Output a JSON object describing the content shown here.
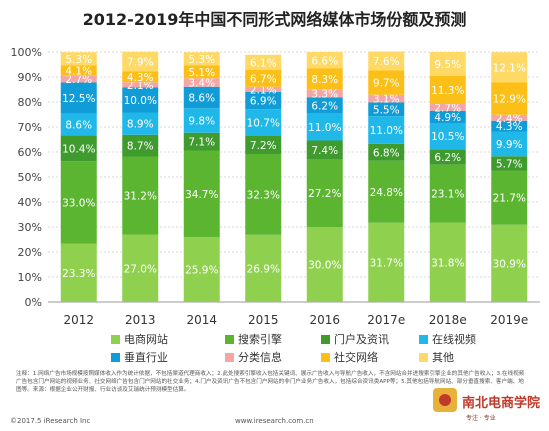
{
  "title": "2012-2019年中国不同形式网络媒体市场份额及预测",
  "chart_data": {
    "type": "bar",
    "stacked": true,
    "percent": true,
    "categories": [
      "2012",
      "2013",
      "2014",
      "2015",
      "2016",
      "2017e",
      "2018e",
      "2019e"
    ],
    "ylim": [
      0,
      100
    ],
    "yticks": [
      "0%",
      "10%",
      "20%",
      "30%",
      "40%",
      "50%",
      "60%",
      "70%",
      "80%",
      "90%",
      "100%"
    ],
    "grid": true,
    "legend_position": "bottom",
    "series": [
      {
        "name": "电商网站",
        "color": "#8fd14f",
        "values": [
          23.3,
          27.0,
          25.9,
          26.9,
          30.0,
          31.7,
          31.8,
          30.9
        ]
      },
      {
        "name": "搜索引擎",
        "color": "#5cb531",
        "values": [
          33.0,
          31.2,
          34.7,
          32.3,
          27.2,
          24.8,
          23.1,
          21.7
        ]
      },
      {
        "name": "门户及资讯",
        "color": "#3f9b2e",
        "values": [
          10.4,
          8.7,
          7.1,
          7.2,
          7.4,
          6.8,
          6.2,
          5.7
        ]
      },
      {
        "name": "在线视频",
        "color": "#1fb8e8",
        "values": [
          8.6,
          8.9,
          9.8,
          10.7,
          11.0,
          11.0,
          10.5,
          9.9
        ]
      },
      {
        "name": "垂直行业",
        "color": "#109cd6",
        "values": [
          12.5,
          10.0,
          8.6,
          6.9,
          6.2,
          5.5,
          4.9,
          4.3
        ]
      },
      {
        "name": "分类信息",
        "color": "#f4a6a6",
        "values": [
          2.7,
          2.1,
          3.4,
          2.1,
          3.3,
          3.1,
          2.7,
          2.4
        ]
      },
      {
        "name": "社交网络",
        "color": "#fbbf18",
        "values": [
          4.1,
          4.3,
          5.1,
          6.7,
          8.3,
          9.7,
          11.3,
          12.9
        ]
      },
      {
        "name": "其他",
        "color": "#ffd966",
        "values": [
          5.3,
          7.9,
          5.3,
          6.1,
          6.6,
          7.6,
          9.5,
          12.1
        ]
      }
    ]
  },
  "notes": "注释：1.网络广告市场规模按照媒体收入作为统计依据，不包括渠道代理商收入；2.此处搜索引擎收入包括关键词、展示广告收入与导航广告收入，不含网站合并进搜索引擎企业的其他广告收入；3.在线视频广告包含门户网站的视频业务、社交网络广告包含门户网站的社交业务；4.门户及资讯广告不包含门户网站的非门户业务广告收入，包括综合资讯类APP等；5.其他包括导航网站、部分垂直搜索、客户端、地图等。来源：根据企业公开财报、行业访谈及艾瑞统计预测模型估算。",
  "copyright": "©2017.5 iResearch Inc",
  "source": "www.iresearch.com.cn",
  "watermark": {
    "text": "南北电商学院",
    "sub": "专注 · 专业"
  }
}
